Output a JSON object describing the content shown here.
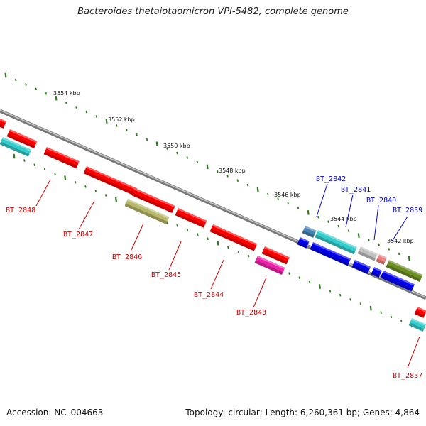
{
  "title": "Bacteroides thetaiotaomicron VPI-5482, complete genome",
  "footer": {
    "accession": "Accession: NC_004663",
    "stats": "Topology: circular; Length: 6,260,361 bp; Genes: 4,864"
  },
  "scale_labels": [
    "3554 kbp",
    "3552 kbp",
    "3550 kbp",
    "3548 kbp",
    "3546 kbp",
    "3544 kbp",
    "3542 kbp"
  ],
  "gene_labels": {
    "reverse_strand": [
      "BT_2848",
      "BT_2847",
      "BT_2846",
      "BT_2845",
      "BT_2844",
      "BT_2843",
      "BT_2837"
    ],
    "forward_strand": [
      "BT_2842",
      "BT_2841",
      "BT_2840",
      "BT_2839"
    ]
  },
  "colors": {
    "reverse_label": "#d00000",
    "forward_label": "#0000cc",
    "genome_line": "#808080",
    "tick": "#2e7d1f",
    "gene_red": "#ff0000",
    "gene_cyan": "#33cccc",
    "gene_blue": "#0000ee",
    "gene_olive": "#b8b86a",
    "gene_magenta": "#ee22aa",
    "gene_green": "#6b8e23",
    "gene_steel": "#4682b4",
    "gene_grey": "#c0c0c0",
    "gene_salmon": "#f08080"
  }
}
